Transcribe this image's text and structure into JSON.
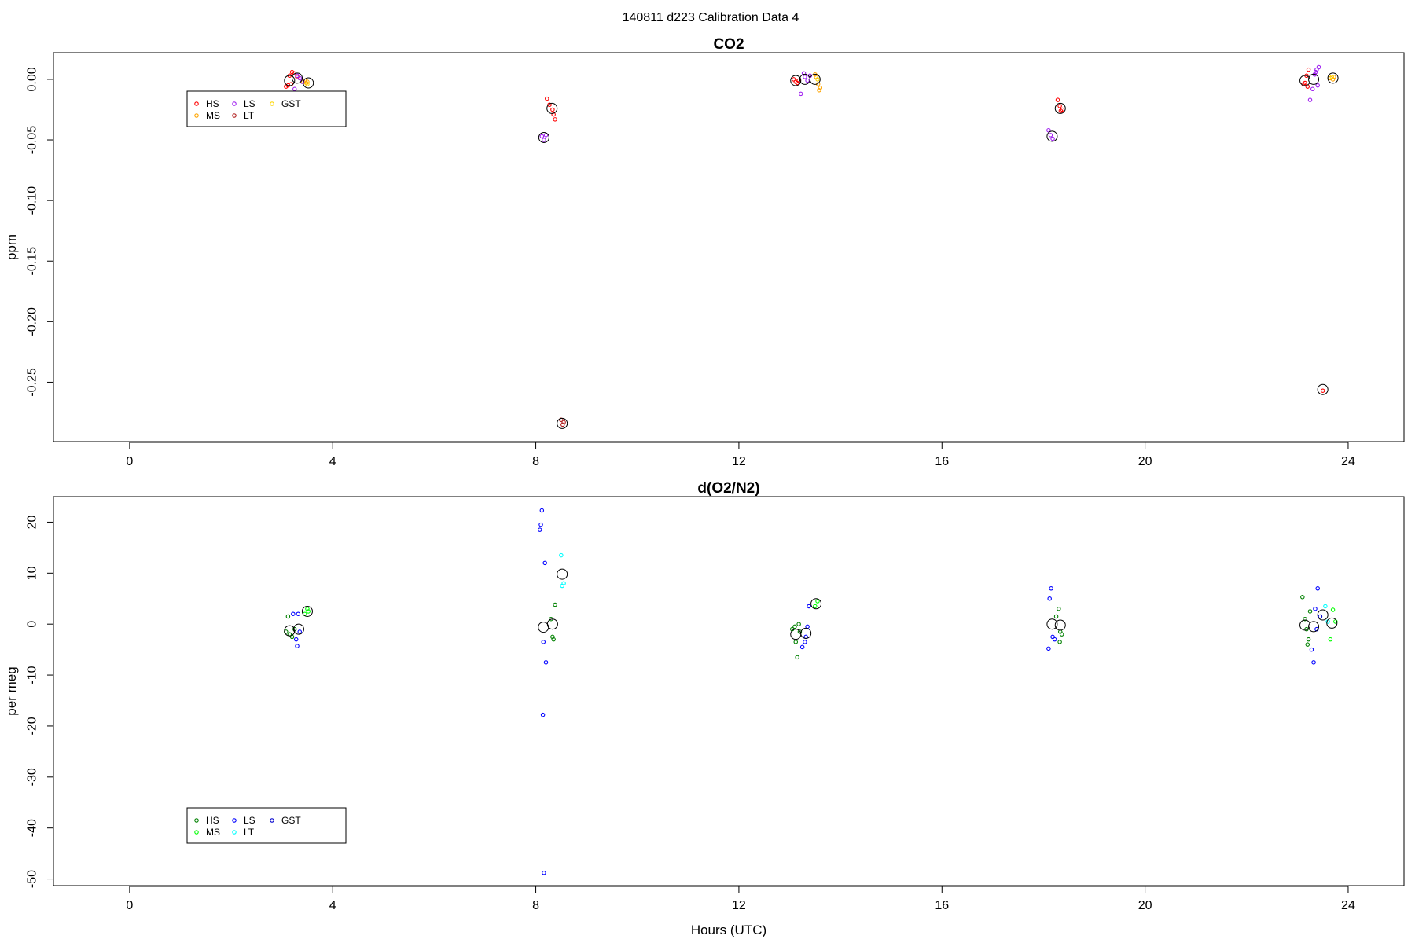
{
  "figure_title": "140811   d223   Calibration Data 4",
  "chart_data": [
    {
      "type": "scatter",
      "title": "CO2",
      "xlabel": "",
      "ylabel": "ppm",
      "xlim": [
        -1.5,
        25.1
      ],
      "ylim": [
        -0.299,
        0.022
      ],
      "x_ticks": [
        0,
        4,
        8,
        12,
        16,
        20,
        24
      ],
      "y_ticks": [
        0.0,
        -0.05,
        -0.1,
        -0.15,
        -0.2,
        -0.25
      ],
      "y_tick_labels": [
        "0.00",
        "-0.05",
        "-0.10",
        "-0.15",
        "-0.20",
        "-0.25"
      ],
      "legend": {
        "position": "top-left",
        "entries": [
          {
            "label": "HS",
            "color": "#ff0000"
          },
          {
            "label": "MS",
            "color": "#ffa500"
          },
          {
            "label": "LS",
            "color": "#a020f0"
          },
          {
            "label": "LT",
            "color": "#b22222"
          },
          {
            "label": "GST",
            "color": "#ffd700"
          }
        ]
      },
      "series": [
        {
          "color": "#ff0000",
          "points": [
            [
              3.15,
              0.003
            ],
            [
              3.2,
              0.006
            ],
            [
              3.24,
              0.005
            ],
            [
              3.3,
              0.002
            ],
            [
              3.12,
              -0.005
            ],
            [
              3.08,
              -0.006
            ],
            [
              3.18,
              -0.004
            ],
            [
              8.22,
              -0.016
            ],
            [
              8.27,
              -0.021
            ],
            [
              8.33,
              -0.025
            ],
            [
              8.35,
              -0.029
            ],
            [
              8.38,
              -0.033
            ],
            [
              13.08,
              0.0
            ],
            [
              13.12,
              -0.002
            ],
            [
              13.15,
              -0.003
            ],
            [
              13.18,
              -0.001
            ],
            [
              18.28,
              -0.017
            ],
            [
              18.32,
              -0.022
            ],
            [
              18.37,
              -0.025
            ],
            [
              18.34,
              -0.026
            ],
            [
              23.12,
              -0.004
            ],
            [
              23.18,
              0.003
            ],
            [
              23.2,
              -0.006
            ],
            [
              23.22,
              0.008
            ],
            [
              23.15,
              -0.003
            ],
            [
              23.5,
              -0.257
            ]
          ]
        },
        {
          "color": "#ffa500",
          "points": [
            [
              3.42,
              -0.002
            ],
            [
              3.45,
              -0.001
            ],
            [
              3.48,
              -0.003
            ],
            [
              3.5,
              -0.002
            ],
            [
              13.5,
              0.004
            ],
            [
              13.52,
              0.002
            ],
            [
              13.56,
              -0.004
            ],
            [
              13.58,
              -0.009
            ],
            [
              13.6,
              -0.007
            ],
            [
              23.65,
              0.001
            ],
            [
              23.7,
              0.0
            ],
            [
              23.72,
              0.002
            ]
          ]
        },
        {
          "color": "#a020f0",
          "points": [
            [
              3.25,
              -0.008
            ],
            [
              3.3,
              0.003
            ],
            [
              3.35,
              0.001
            ],
            [
              3.4,
              -0.002
            ],
            [
              8.12,
              -0.047
            ],
            [
              8.16,
              -0.05
            ],
            [
              8.2,
              -0.046
            ],
            [
              13.22,
              -0.012
            ],
            [
              13.28,
              0.005
            ],
            [
              13.3,
              0.002
            ],
            [
              13.35,
              -0.001
            ],
            [
              13.4,
              0.003
            ],
            [
              18.1,
              -0.042
            ],
            [
              18.14,
              -0.046
            ],
            [
              18.18,
              -0.049
            ],
            [
              23.25,
              -0.017
            ],
            [
              23.3,
              -0.008
            ],
            [
              23.34,
              0.004
            ],
            [
              23.38,
              0.008
            ],
            [
              23.42,
              0.01
            ],
            [
              23.4,
              -0.005
            ],
            [
              23.36,
              0.006
            ]
          ]
        },
        {
          "color": "#b22222",
          "points": [
            [
              8.5,
              -0.281
            ],
            [
              8.53,
              -0.285
            ],
            [
              8.55,
              -0.283
            ]
          ]
        },
        {
          "color": "#ffd700",
          "points": [
            [
              3.5,
              -0.004
            ],
            [
              13.55,
              0.0
            ],
            [
              23.68,
              0.002
            ]
          ]
        }
      ],
      "means": [
        [
          3.15,
          -0.001
        ],
        [
          3.3,
          0.001
        ],
        [
          3.52,
          -0.003
        ],
        [
          8.16,
          -0.048
        ],
        [
          8.32,
          -0.024
        ],
        [
          8.52,
          -0.284
        ],
        [
          13.12,
          -0.001
        ],
        [
          13.3,
          0.0
        ],
        [
          13.5,
          0.0
        ],
        [
          18.17,
          -0.047
        ],
        [
          18.33,
          -0.024
        ],
        [
          23.15,
          -0.001
        ],
        [
          23.32,
          0.0
        ],
        [
          23.5,
          -0.256
        ],
        [
          23.7,
          0.001
        ]
      ]
    },
    {
      "type": "scatter",
      "title": "d(O2/N2)",
      "xlabel": "Hours (UTC)",
      "ylabel": "per meg",
      "xlim": [
        -1.5,
        25.1
      ],
      "ylim": [
        -51.3,
        25.0
      ],
      "x_ticks": [
        0,
        4,
        8,
        12,
        16,
        20,
        24
      ],
      "y_ticks": [
        20,
        10,
        0,
        -10,
        -20,
        -30,
        -40,
        -50
      ],
      "y_tick_labels": [
        "20",
        "10",
        "0",
        "-10",
        "-20",
        "-30",
        "-40",
        "-50"
      ],
      "legend": {
        "position": "bottom-left",
        "entries": [
          {
            "label": "HS",
            "color": "#008000"
          },
          {
            "label": "MS",
            "color": "#00ff00"
          },
          {
            "label": "LS",
            "color": "#0000ff"
          },
          {
            "label": "LT",
            "color": "#00ffff"
          },
          {
            "label": "GST",
            "color": "#0000cd"
          }
        ]
      },
      "series": [
        {
          "color": "#008000",
          "points": [
            [
              3.12,
              1.5
            ],
            [
              3.15,
              -2.0
            ],
            [
              3.2,
              -2.5
            ],
            [
              3.25,
              -1.0
            ],
            [
              3.08,
              -1.5
            ],
            [
              8.3,
              1.0
            ],
            [
              8.33,
              -2.5
            ],
            [
              8.35,
              -3.0
            ],
            [
              8.38,
              3.8
            ],
            [
              13.05,
              -1.0
            ],
            [
              13.1,
              -0.5
            ],
            [
              13.12,
              -3.5
            ],
            [
              13.15,
              -6.5
            ],
            [
              13.18,
              0.0
            ],
            [
              13.2,
              -1.5
            ],
            [
              18.25,
              1.5
            ],
            [
              18.3,
              3.0
            ],
            [
              18.33,
              -1.5
            ],
            [
              18.36,
              -2.0
            ],
            [
              18.32,
              -3.5
            ],
            [
              23.1,
              5.3
            ],
            [
              23.15,
              1.0
            ],
            [
              23.18,
              -1.0
            ],
            [
              23.2,
              -4.0
            ],
            [
              23.22,
              -3.0
            ],
            [
              23.25,
              2.5
            ]
          ]
        },
        {
          "color": "#00ff00",
          "points": [
            [
              3.45,
              2.0
            ],
            [
              3.5,
              3.0
            ],
            [
              3.52,
              2.5
            ],
            [
              13.5,
              3.5
            ],
            [
              13.55,
              4.5
            ],
            [
              23.65,
              -3.0
            ],
            [
              23.7,
              2.8
            ],
            [
              23.75,
              0.5
            ]
          ]
        },
        {
          "color": "#0000ff",
          "points": [
            [
              3.22,
              2.0
            ],
            [
              3.28,
              -3.0
            ],
            [
              3.3,
              -4.3
            ],
            [
              3.32,
              2.0
            ],
            [
              3.35,
              -1.5
            ],
            [
              8.08,
              18.5
            ],
            [
              8.1,
              19.5
            ],
            [
              8.12,
              22.3
            ],
            [
              8.15,
              -3.5
            ],
            [
              8.18,
              12.0
            ],
            [
              8.2,
              -7.5
            ],
            [
              8.14,
              -17.8
            ],
            [
              8.16,
              -48.8
            ],
            [
              13.25,
              -4.5
            ],
            [
              13.3,
              -3.5
            ],
            [
              13.35,
              -0.5
            ],
            [
              13.38,
              3.5
            ],
            [
              13.32,
              -2.5
            ],
            [
              18.1,
              -4.8
            ],
            [
              18.12,
              5.0
            ],
            [
              18.15,
              7.0
            ],
            [
              18.18,
              -2.5
            ],
            [
              18.22,
              -3.0
            ],
            [
              23.28,
              -5.0
            ],
            [
              23.32,
              -7.5
            ],
            [
              23.35,
              3.0
            ],
            [
              23.4,
              7.0
            ],
            [
              23.38,
              -1.0
            ]
          ]
        },
        {
          "color": "#00ffff",
          "points": [
            [
              8.5,
              13.5
            ],
            [
              8.52,
              7.5
            ],
            [
              8.55,
              8.0
            ],
            [
              23.55,
              3.5
            ],
            [
              23.6,
              0.5
            ]
          ]
        },
        {
          "color": "#0000cd",
          "points": [
            [
              23.45,
              1.5
            ]
          ]
        }
      ],
      "means": [
        [
          3.15,
          -1.3
        ],
        [
          3.33,
          -1.0
        ],
        [
          3.5,
          2.5
        ],
        [
          8.15,
          -0.6
        ],
        [
          8.33,
          0.0
        ],
        [
          8.52,
          9.8
        ],
        [
          13.12,
          -2.0
        ],
        [
          13.32,
          -1.8
        ],
        [
          13.52,
          4.0
        ],
        [
          18.17,
          0.0
        ],
        [
          18.33,
          -0.2
        ],
        [
          23.15,
          -0.2
        ],
        [
          23.32,
          -0.5
        ],
        [
          23.5,
          1.8
        ],
        [
          23.68,
          0.2
        ]
      ]
    }
  ]
}
